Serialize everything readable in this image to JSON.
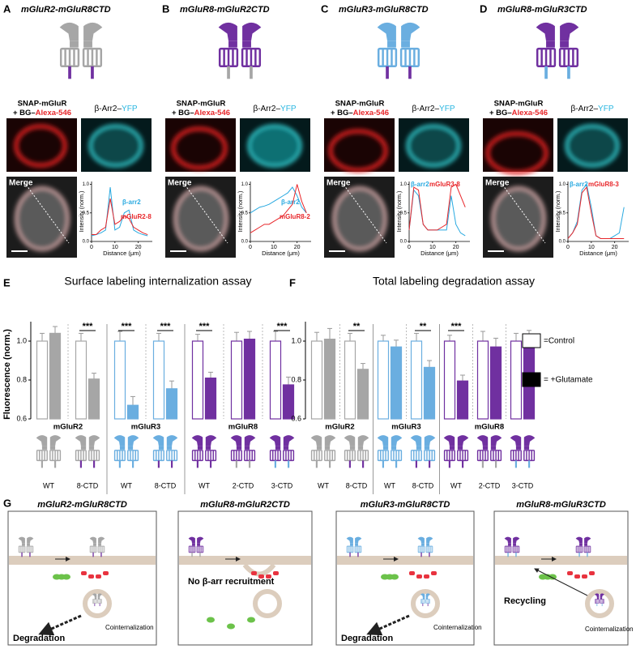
{
  "panels": [
    {
      "letter": "A",
      "title": "mGluR2-mGluR8CTD",
      "colors": {
        "body": "#a6a6a6",
        "ctd": "#7030a0"
      },
      "snap": [
        "SNAP-mGluR",
        "+ BG–",
        "Alexa-546"
      ],
      "arr": [
        "β-Arr2–",
        "YFP"
      ],
      "merge": "Merge",
      "plot": {
        "ylabel": "Intensity (norm.)",
        "xlabel": "Distance (μm)",
        "xlim": [
          0,
          26
        ],
        "ylim": [
          0,
          1.05
        ],
        "xticks": [
          0,
          10,
          20
        ],
        "yticks": [
          {
            "value": 0,
            "label": "0.0"
          },
          0.5,
          {
            "value": 1,
            "label": "1.0"
          }
        ],
        "x": [
          0,
          2,
          4,
          6,
          8,
          10,
          12,
          14,
          16,
          18,
          20,
          22,
          24
        ],
        "series": [
          {
            "name": "β-arr2",
            "color": "#29a9e0",
            "values": [
              0.1,
              0.12,
              0.15,
              0.2,
              0.95,
              0.2,
              0.25,
              0.5,
              0.55,
              0.2,
              0.15,
              0.12,
              0.1
            ]
          },
          {
            "name": "mGluR2-8",
            "color": "#e8262a",
            "values": [
              0.12,
              0.12,
              0.2,
              0.25,
              0.75,
              0.3,
              0.35,
              0.45,
              0.4,
              0.25,
              0.2,
              0.15,
              0.12
            ]
          }
        ]
      }
    },
    {
      "letter": "B",
      "title": "mGluR8-mGluR2CTD",
      "colors": {
        "body": "#7030a0",
        "ctd": "#a6a6a6"
      },
      "snap": [
        "SNAP-mGluR",
        "+ BG–",
        "Alexa-546"
      ],
      "arr": [
        "β-Arr2–",
        "YFP"
      ],
      "merge": "Merge",
      "plot": {
        "ylabel": "Intensity (norm.)",
        "xlabel": "Distance (μm)",
        "xlim": [
          0,
          26
        ],
        "ylim": [
          0,
          1.05
        ],
        "xticks": [
          0,
          10,
          20
        ],
        "yticks": [
          {
            "value": 0,
            "label": "0.0"
          },
          0.5,
          {
            "value": 1,
            "label": "1.0"
          }
        ],
        "x": [
          0,
          2,
          4,
          6,
          8,
          10,
          12,
          14,
          16,
          18,
          20,
          22,
          24
        ],
        "series": [
          {
            "name": "β-arr2",
            "color": "#29a9e0",
            "values": [
              0.5,
              0.55,
              0.6,
              0.62,
              0.65,
              0.7,
              0.75,
              0.8,
              0.85,
              0.95,
              0.8,
              0.6,
              0.5
            ]
          },
          {
            "name": "mGluR8-2",
            "color": "#e8262a",
            "values": [
              0.15,
              0.2,
              0.25,
              0.3,
              0.3,
              0.35,
              0.4,
              0.45,
              0.55,
              0.65,
              1.0,
              0.7,
              0.5
            ]
          }
        ]
      }
    },
    {
      "letter": "C",
      "title": "mGluR3-mGluR8CTD",
      "colors": {
        "body": "#6aaee0",
        "ctd": "#7030a0"
      },
      "snap": [
        "SNAP-mGluR",
        "+ BG–",
        "Alexa-546"
      ],
      "arr": [
        "β-Arr2–",
        "YFP"
      ],
      "merge": "Merge",
      "plot": {
        "ylabel": "Intensity (norm.)",
        "xlabel": "Distance (μm)",
        "xlim": [
          0,
          26
        ],
        "ylim": [
          0,
          1.05
        ],
        "xticks": [
          0,
          10,
          20
        ],
        "yticks": [
          {
            "value": 0,
            "label": "0.0"
          },
          0.5,
          {
            "value": 1,
            "label": "1.0"
          }
        ],
        "x": [
          0,
          2,
          4,
          6,
          8,
          10,
          12,
          14,
          16,
          18,
          20,
          22,
          24
        ],
        "series": [
          {
            "name": "β-arr2",
            "color": "#29a9e0",
            "values": [
              0.2,
              0.9,
              0.8,
              0.3,
              0.2,
              0.2,
              0.2,
              0.2,
              0.2,
              0.8,
              0.3,
              0.15,
              0.1
            ]
          },
          {
            "name": "mGluR3-8",
            "color": "#e8262a",
            "values": [
              0.2,
              0.95,
              0.9,
              0.3,
              0.2,
              0.2,
              0.2,
              0.25,
              0.3,
              0.95,
              1.0,
              0.8,
              0.6
            ]
          }
        ]
      }
    },
    {
      "letter": "D",
      "title": "mGluR8-mGluR3CTD",
      "colors": {
        "body": "#7030a0",
        "ctd": "#6aaee0"
      },
      "snap": [
        "SNAP-mGluR",
        "+ BG–",
        "Alexa-546"
      ],
      "arr": [
        "β-Arr2–",
        "YFP"
      ],
      "merge": "Merge",
      "plot": {
        "ylabel": "Intensity (norm.)",
        "xlabel": "Distance (μm)",
        "xlim": [
          0,
          26
        ],
        "ylim": [
          0,
          1.05
        ],
        "xticks": [
          0,
          10,
          20
        ],
        "yticks": [
          {
            "value": 0,
            "label": "0.0"
          },
          0.5,
          {
            "value": 1,
            "label": "1.0"
          }
        ],
        "x": [
          0,
          2,
          4,
          6,
          8,
          10,
          12,
          14,
          16,
          18,
          20,
          22,
          24
        ],
        "series": [
          {
            "name": "β-arr2",
            "color": "#29a9e0",
            "values": [
              0.05,
              0.15,
              0.35,
              0.9,
              1.0,
              0.6,
              0.1,
              0.05,
              0.05,
              0.05,
              0.1,
              0.15,
              0.6
            ]
          },
          {
            "name": "mGluR8-3",
            "color": "#e8262a",
            "values": [
              0.05,
              0.15,
              0.3,
              0.85,
              0.95,
              0.5,
              0.1,
              0.05,
              0.05,
              0.05,
              0.05,
              0.05,
              0.05
            ]
          }
        ]
      }
    }
  ],
  "assays": [
    {
      "letter": "E",
      "title": "Surface labeling internalization assay",
      "ylabel": "Fluorescence (norm.)",
      "ylim": [
        0.6,
        1.1
      ],
      "yticks": [
        0.6,
        0.8,
        {
          "value": 1,
          "label": "1.0"
        }
      ],
      "groups": [
        {
          "name": "mGluR2",
          "color": "#a6a6a6",
          "categories": [
            "WT",
            "8-CTD"
          ],
          "ctd_colors": [
            "#a6a6a6",
            "#7030a0"
          ],
          "control": [
            1,
            1
          ],
          "control_err": [
            0.04,
            0.04
          ],
          "glutamate": [
            1.04,
            0.805
          ],
          "glutamate_err": [
            0.035,
            0.03
          ],
          "significance": [
            null,
            "***"
          ]
        },
        {
          "name": "mGluR3",
          "color": "#6aaee0",
          "categories": [
            "WT",
            "8-CTD"
          ],
          "ctd_colors": [
            "#6aaee0",
            "#7030a0"
          ],
          "control": [
            1,
            1
          ],
          "control_err": [
            0.05,
            0.04
          ],
          "glutamate": [
            0.67,
            0.755
          ],
          "glutamate_err": [
            0.045,
            0.04
          ],
          "significance": [
            "***",
            "***"
          ]
        },
        {
          "name": "mGluR8",
          "color": "#7030a0",
          "categories": [
            "WT",
            "2-CTD",
            "3-CTD"
          ],
          "ctd_colors": [
            "#7030a0",
            "#a6a6a6",
            "#6aaee0"
          ],
          "control": [
            1,
            1,
            1
          ],
          "control_err": [
            0.035,
            0.045,
            0.05
          ],
          "glutamate": [
            0.81,
            1.01,
            0.775
          ],
          "glutamate_err": [
            0.03,
            0.04,
            0.04
          ],
          "significance": [
            "***",
            null,
            "***"
          ]
        }
      ]
    },
    {
      "letter": "F",
      "title": "Total labeling degradation assay",
      "ylim": [
        0.6,
        1.1
      ],
      "yticks": [
        0.6,
        0.8,
        {
          "value": 1,
          "label": "1.0"
        }
      ],
      "legend": [
        "=Control",
        "= +Glutamate"
      ],
      "groups": [
        {
          "name": "mGluR2",
          "color": "#a6a6a6",
          "categories": [
            "WT",
            "8-CTD"
          ],
          "ctd_colors": [
            "#a6a6a6",
            "#7030a0"
          ],
          "control": [
            1,
            1
          ],
          "control_err": [
            0.045,
            0.04
          ],
          "glutamate": [
            1.01,
            0.855
          ],
          "glutamate_err": [
            0.055,
            0.03
          ],
          "significance": [
            null,
            "**"
          ]
        },
        {
          "name": "mGluR3",
          "color": "#6aaee0",
          "categories": [
            "WT",
            "8-CTD"
          ],
          "ctd_colors": [
            "#6aaee0",
            "#7030a0"
          ],
          "control": [
            1,
            1
          ],
          "control_err": [
            0.03,
            0.04
          ],
          "glutamate": [
            0.97,
            0.865
          ],
          "glutamate_err": [
            0.035,
            0.035
          ],
          "significance": [
            null,
            "**"
          ]
        },
        {
          "name": "mGluR8",
          "color": "#7030a0",
          "categories": [
            "WT",
            "2-CTD",
            "3-CTD"
          ],
          "ctd_colors": [
            "#7030a0",
            "#a6a6a6",
            "#6aaee0"
          ],
          "control": [
            1,
            1,
            1
          ],
          "control_err": [
            0.03,
            0.05,
            0.04
          ],
          "glutamate": [
            0.795,
            0.97,
            1.02
          ],
          "glutamate_err": [
            0.03,
            0.045,
            0.035
          ],
          "significance": [
            "***",
            null,
            null
          ]
        }
      ]
    }
  ],
  "models": {
    "letter": "G",
    "panels": [
      {
        "title": "mGluR2-mGluR8CTD",
        "texts": [
          "Degradation",
          "Cointernalization"
        ]
      },
      {
        "title": "mGluR8-mGluR2CTD",
        "texts": [
          "No β-arr recruitment"
        ]
      },
      {
        "title": "mGluR3-mGluR8CTD",
        "texts": [
          "Degradation",
          "Cointernalization"
        ]
      },
      {
        "title": "mGluR8-mGluR3CTD",
        "texts": [
          "Recycling",
          "Cointernalization"
        ]
      }
    ]
  }
}
